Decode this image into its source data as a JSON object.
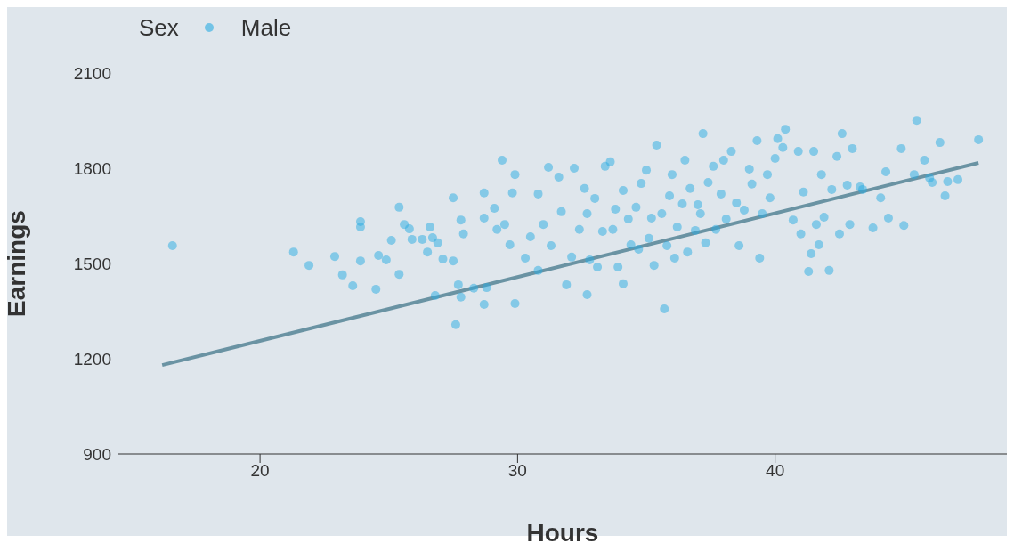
{
  "chart_data": {
    "type": "scatter",
    "xlabel": "Hours",
    "ylabel": "Earnings",
    "legend_title": "Sex",
    "legend": "top left",
    "grid": false,
    "xlim": [
      14.5,
      49
    ],
    "xticks": [
      20,
      30,
      40
    ],
    "ylim": [
      900,
      2100
    ],
    "yticks": [
      900,
      1200,
      1500,
      1800,
      2100
    ],
    "series": [
      {
        "name": "Male",
        "color": "#29abe2",
        "marker": "circle",
        "x": [
          16.6,
          21.3,
          21.9,
          22.9,
          23.2,
          23.6,
          23.9,
          23.9,
          23.9,
          24.5,
          24.6,
          24.9,
          25.1,
          25.4,
          25.4,
          25.6,
          25.8,
          25.9,
          26.3,
          26.5,
          26.6,
          26.7,
          26.9,
          26.8,
          27.1,
          27.5,
          27.5,
          27.6,
          27.7,
          27.8,
          27.8,
          27.9,
          28.3,
          28.7,
          28.7,
          28.7,
          28.8,
          29.1,
          29.2,
          29.4,
          29.5,
          29.7,
          29.8,
          29.9,
          29.9,
          30.3,
          30.5,
          30.8,
          30.8,
          31.0,
          31.2,
          31.3,
          31.6,
          31.7,
          31.9,
          32.1,
          32.2,
          32.4,
          32.6,
          32.7,
          32.7,
          32.8,
          33.0,
          33.1,
          33.3,
          33.4,
          33.6,
          33.7,
          33.8,
          33.9,
          34.1,
          34.1,
          34.3,
          34.4,
          34.6,
          34.7,
          34.8,
          35.0,
          35.1,
          35.2,
          35.3,
          35.4,
          35.6,
          35.7,
          35.8,
          35.9,
          36.0,
          36.1,
          36.2,
          36.4,
          36.5,
          36.6,
          36.7,
          36.9,
          37.0,
          37.1,
          37.2,
          37.3,
          37.4,
          37.6,
          37.7,
          37.9,
          38.0,
          38.1,
          38.3,
          38.5,
          38.6,
          38.8,
          39.0,
          39.1,
          39.3,
          39.4,
          39.5,
          39.7,
          39.8,
          40.0,
          40.1,
          40.3,
          40.4,
          40.7,
          40.9,
          41.0,
          41.1,
          41.3,
          41.4,
          41.5,
          41.6,
          41.7,
          41.8,
          41.9,
          42.1,
          42.2,
          42.4,
          42.5,
          42.6,
          42.8,
          42.9,
          43.0,
          43.3,
          43.4,
          43.8,
          44.1,
          44.4,
          44.3,
          44.9,
          45.0,
          45.5,
          45.4,
          45.8,
          46.0,
          46.1,
          46.4,
          46.6,
          46.7,
          47.1,
          47.9
        ],
        "values": [
          1556,
          1536,
          1494,
          1522,
          1464,
          1430,
          1632,
          1615,
          1508,
          1419,
          1525,
          1511,
          1573,
          1677,
          1466,
          1623,
          1609,
          1576,
          1576,
          1536,
          1615,
          1581,
          1565,
          1399,
          1514,
          1707,
          1508,
          1307,
          1433,
          1637,
          1394,
          1593,
          1422,
          1371,
          1722,
          1643,
          1424,
          1674,
          1607,
          1825,
          1623,
          1559,
          1722,
          1780,
          1374,
          1517,
          1584,
          1719,
          1478,
          1623,
          1803,
          1556,
          1772,
          1663,
          1433,
          1520,
          1800,
          1607,
          1736,
          1402,
          1657,
          1511,
          1705,
          1489,
          1601,
          1806,
          1820,
          1607,
          1671,
          1489,
          1730,
          1436,
          1640,
          1559,
          1677,
          1545,
          1752,
          1794,
          1579,
          1643,
          1494,
          1873,
          1657,
          1357,
          1556,
          1713,
          1780,
          1517,
          1615,
          1688,
          1825,
          1536,
          1736,
          1604,
          1685,
          1657,
          1909,
          1565,
          1755,
          1806,
          1607,
          1719,
          1825,
          1640,
          1853,
          1691,
          1556,
          1668,
          1797,
          1750,
          1887,
          1517,
          1657,
          1780,
          1707,
          1831,
          1893,
          1865,
          1923,
          1637,
          1853,
          1593,
          1725,
          1475,
          1531,
          1853,
          1623,
          1559,
          1780,
          1646,
          1478,
          1733,
          1837,
          1593,
          1909,
          1747,
          1623,
          1862,
          1741,
          1733,
          1612,
          1707,
          1643,
          1789,
          1862,
          1620,
          1951,
          1780,
          1825,
          1769,
          1755,
          1881,
          1713,
          1758,
          1764,
          1890
        ]
      },
      {
        "type": "line",
        "color": "#6a93a3",
        "x": [
          16.2,
          47.9
        ],
        "values": [
          1180,
          1817
        ]
      }
    ]
  }
}
